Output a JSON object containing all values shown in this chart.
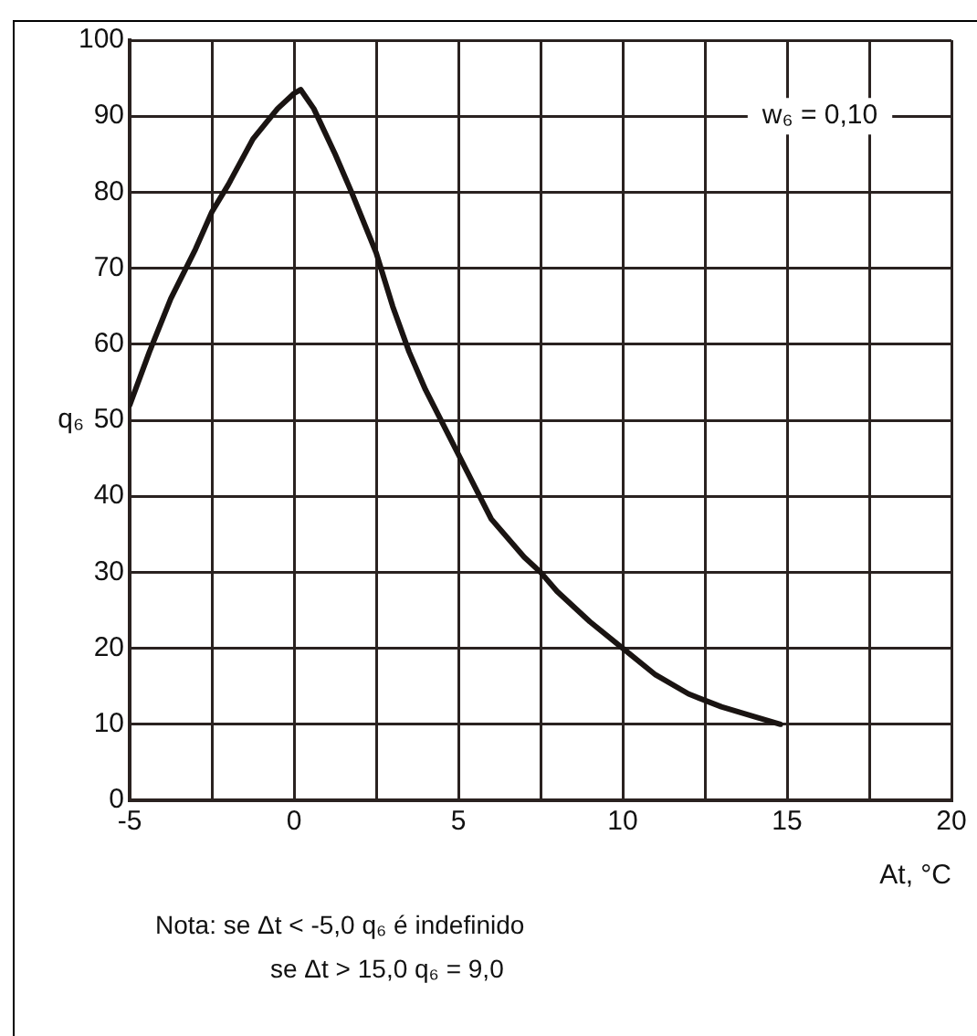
{
  "chart_data": {
    "type": "line",
    "xlabel": "At, °C",
    "ylabel": "q₆",
    "xlim": [
      -5,
      20
    ],
    "ylim": [
      0,
      100
    ],
    "xticks": [
      -5,
      {
        "value": -2.5,
        "label": null
      },
      0,
      {
        "value": 2.5,
        "label": null
      },
      5,
      {
        "value": 7.5,
        "label": null
      },
      10,
      {
        "value": 12.5,
        "label": null
      },
      15,
      {
        "value": 17.5,
        "label": null
      },
      20
    ],
    "yticks": [
      0,
      10,
      20,
      30,
      40,
      50,
      60,
      70,
      80,
      90,
      100
    ],
    "grid": true,
    "legend": false,
    "marker": "none",
    "line_style": "solid",
    "series": [
      {
        "color": "#1a1412",
        "x": [
          -5,
          -4.4,
          -3.75,
          -3,
          -2.5,
          -2,
          -1.25,
          -0.5,
          0,
          0.2,
          0.6,
          1.25,
          1.75,
          2.5,
          3,
          3.5,
          4,
          5,
          6,
          7,
          7.5,
          8,
          9,
          10,
          11,
          12,
          13,
          14,
          14.8
        ],
        "values": [
          52,
          59,
          66,
          72.5,
          77.4,
          81,
          87,
          91,
          93,
          93.5,
          91,
          85,
          80,
          72,
          65,
          59,
          54,
          45.5,
          37,
          32,
          30,
          27.5,
          23.5,
          20,
          16.5,
          14,
          12.3,
          11,
          10
        ]
      }
    ],
    "annotations": [
      "w₆ = 0,10",
      "Nota: se Δt < -5,0 q₆ é indefinido",
      "se Δt > 15,0 q₆ = 9,0"
    ]
  }
}
